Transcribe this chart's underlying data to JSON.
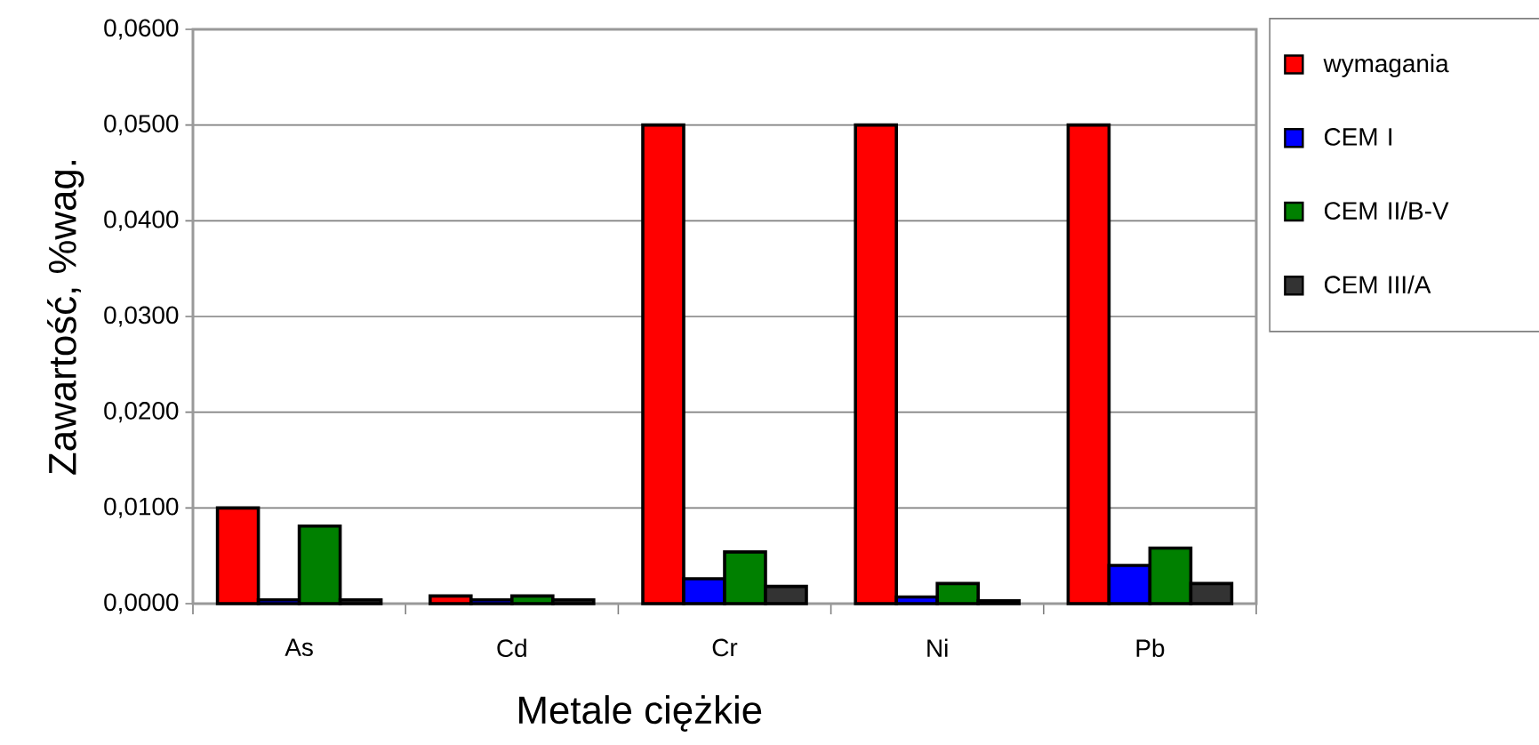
{
  "chart_data": {
    "type": "bar",
    "xlabel": "Metale ciężkie",
    "ylabel": "Zawartość, %wag.",
    "categories": [
      "As",
      "Cd",
      "Cr",
      "Ni",
      "Pb"
    ],
    "series": [
      {
        "name": "wymagania",
        "color": "#ff0000",
        "values": [
          0.01,
          0.0008,
          0.05,
          0.05,
          0.05
        ]
      },
      {
        "name": "CEM I",
        "color": "#0000ff",
        "values": [
          0.0004,
          0.0004,
          0.0026,
          0.0007,
          0.004
        ]
      },
      {
        "name": "CEM II/B-V",
        "color": "#008000",
        "values": [
          0.0081,
          0.0008,
          0.0054,
          0.0021,
          0.0058
        ]
      },
      {
        "name": "CEM III/A",
        "color": "#333333",
        "values": [
          0.0004,
          0.0004,
          0.0018,
          0.0003,
          0.0021
        ]
      }
    ],
    "ylim": [
      0,
      0.06
    ],
    "yticks": [
      {
        "value": 0,
        "label": "0,0000"
      },
      {
        "value": 0.01,
        "label": "0,0100"
      },
      {
        "value": 0.02,
        "label": "0,0200"
      },
      {
        "value": 0.03,
        "label": "0,0300"
      },
      {
        "value": 0.04,
        "label": "0,0400"
      },
      {
        "value": 0.05,
        "label": "0,0500"
      },
      {
        "value": 0.06,
        "label": "0,0600"
      }
    ],
    "grid": "y",
    "legend": "right"
  }
}
